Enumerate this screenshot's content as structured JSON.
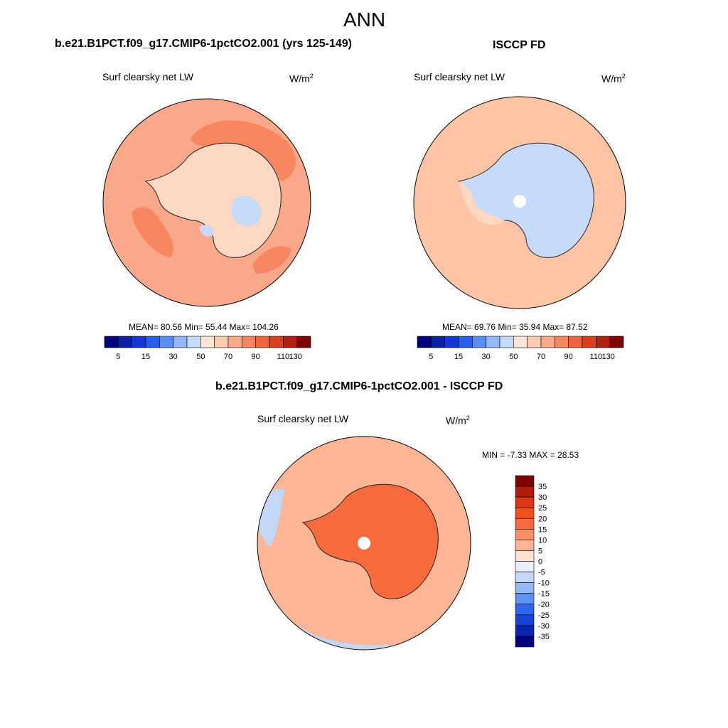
{
  "title": "ANN",
  "panels": [
    {
      "title": "b.e21.B1PCT.f09_g17.CMIP6-1pctCO2.001 (yrs 125-149)",
      "variable": "Surf clearsky net LW",
      "units": "W/m",
      "units_sup": "2",
      "stats": {
        "mean_label": "MEAN=",
        "mean": "80.56",
        "min_label": "Min=",
        "min": "55.44",
        "max_label": "Max=",
        "max": "104.26"
      }
    },
    {
      "title": "ISCCP FD",
      "variable": "Surf clearsky net LW",
      "units": "W/m",
      "units_sup": "2",
      "stats": {
        "mean_label": "MEAN=",
        "mean": "69.76",
        "min_label": "Min=",
        "min": "35.94",
        "max_label": "Max=",
        "max": "87.52"
      }
    },
    {
      "title": "b.e21.B1PCT.f09_g17.CMIP6-1pctCO2.001 - ISCCP FD",
      "variable": "Surf clearsky net LW",
      "units": "W/m",
      "units_sup": "2",
      "stats": {
        "min_label": "MIN =",
        "min": "-7.33",
        "max_label": "MAX =",
        "max": "28.53"
      }
    }
  ],
  "colorbar_abs": {
    "tick_labels": [
      "5",
      "15",
      "30",
      "50",
      "70",
      "90",
      "110",
      "130"
    ],
    "colors": [
      "#00007f",
      "#0a1fa8",
      "#1436d6",
      "#2a5ef0",
      "#5a8cf5",
      "#93b8f7",
      "#c6dbf9",
      "#fbe6d6",
      "#fdcbb0",
      "#fcaa89",
      "#f88660",
      "#f0623c",
      "#dc3f1d",
      "#b22012",
      "#7f0000"
    ]
  },
  "colorbar_diff": {
    "tick_labels": [
      "35",
      "30",
      "25",
      "20",
      "15",
      "10",
      "5",
      "0",
      "-5",
      "-10",
      "-15",
      "-20",
      "-25",
      "-30",
      "-35"
    ],
    "colors": [
      "#7f0000",
      "#b31a0a",
      "#dc3614",
      "#f4501c",
      "#f76a3c",
      "#f99066",
      "#fcb595",
      "#fde2cd",
      "#e8f0fa",
      "#c3d8f7",
      "#93b8f4",
      "#5e92f0",
      "#3068ec",
      "#1443d9",
      "#0a24b0",
      "#000080"
    ]
  },
  "map_fills": {
    "ocean_a": "#f9a98a",
    "ocean_b": "#f88660",
    "land_a": "#fcd7c2",
    "land_b": "#c6dbf9",
    "ocean_obs": "#fdc4a6",
    "land_obs": "#a9c6f6",
    "diff_ocean": "#fcb595",
    "diff_land": "#f76a3c",
    "diff_neg": "#c3d8f7"
  }
}
